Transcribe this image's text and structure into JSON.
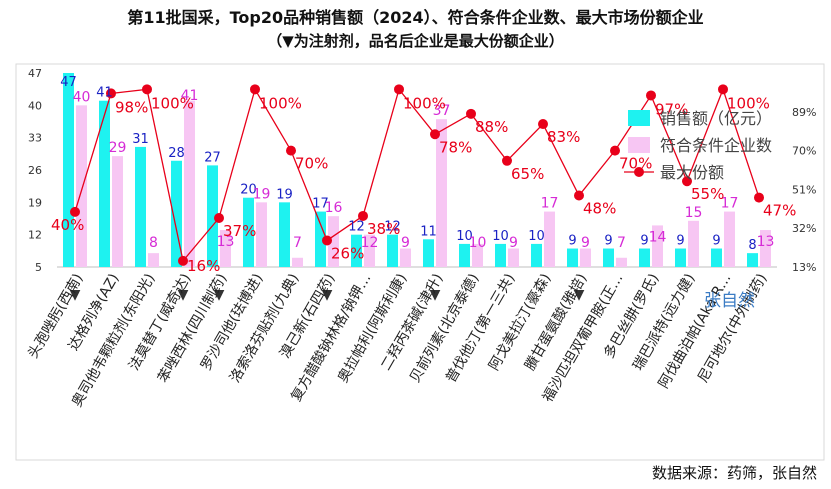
{
  "title": "第11批国采，Top20品种销售额（2024）、符合条件企业数、最大市场份额企业",
  "subtitle": "（▼为注射剂，品名后企业是最大份额企业）",
  "source": "数据来源：药筛，张自然",
  "watermark": "张自然",
  "colors": {
    "sales": "#1ef2f0",
    "companies": "#f7c6f3",
    "share": "#e8001a",
    "sales_label": "#1a22c4",
    "companies_label": "#d62bd6",
    "share_label": "#e8001a"
  },
  "chart_data": {
    "type": "bar",
    "categories": [
      "头孢唑肟(西南)",
      "达格列净(AZ)",
      "奥司他韦颗粒剂(东阳光)",
      "法莫替丁(威奇达)",
      "苯唑西林(四川制药)",
      "罗沙司他(珐博进)",
      "洛索洛芬贴剂(九典)",
      "溴己新(石四药)",
      "复方醋酸钠林格/钠钾…",
      "奥拉帕利(阿斯利康)",
      "二羟丙茶碱(津升)",
      "贝前列素(北京泰德)",
      "普伐他汀(第一三共)",
      "阿戈美拉汀(豪森)",
      "賸甘蛋氨酸(雅培)",
      "福沙匹坦双葡甲胺(正…",
      "多巴丝肼(罗氏)",
      "瑞巴派特(远力健)",
      "阿伐曲泊帕(Aka R…",
      "尼可地尔(中外制药)"
    ],
    "injection_marker": "▼",
    "injection_flags": [
      true,
      false,
      false,
      true,
      true,
      false,
      false,
      true,
      false,
      false,
      true,
      false,
      false,
      false,
      true,
      false,
      false,
      false,
      false,
      false
    ],
    "series": [
      {
        "name": "销售额（亿元）",
        "axis": "left",
        "values": [
          47,
          41,
          31,
          28,
          27,
          20,
          19,
          17,
          12,
          12,
          11,
          10,
          10,
          10,
          9,
          9,
          9,
          9,
          9,
          8
        ]
      },
      {
        "name": "符合条件企业数",
        "axis": "left",
        "values": [
          40,
          29,
          8,
          41,
          13,
          19,
          7,
          16,
          12,
          9,
          37,
          10,
          9,
          17,
          9,
          7,
          14,
          15,
          17,
          13
        ]
      },
      {
        "name": "最大份额",
        "axis": "right",
        "type": "line",
        "values": [
          40,
          98,
          100,
          16,
          37,
          100,
          70,
          26,
          38,
          100,
          78,
          88,
          65,
          83,
          48,
          70,
          97,
          55,
          100,
          47
        ]
      }
    ],
    "left_axis": {
      "ticks": [
        "5",
        "12",
        "19",
        "26",
        "33",
        "40",
        "47"
      ],
      "ylim": [
        5,
        47
      ]
    },
    "right_axis": {
      "ticks": [
        "13%",
        "32%",
        "51%",
        "70%",
        "89%"
      ],
      "ylim": [
        13,
        108
      ]
    },
    "legend_position": "right"
  }
}
